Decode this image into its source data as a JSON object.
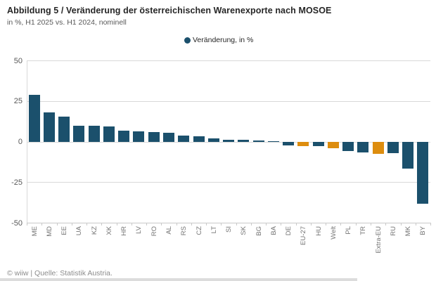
{
  "header": {
    "title": "Abbildung 5 / Veränderung der österreichischen Warenexporte nach MOSOE",
    "subtitle": "in %, H1 2025 vs. H1 2024, nominell"
  },
  "legend": {
    "marker": "filled-circle",
    "label": "Veränderung, in %"
  },
  "footer": {
    "text": "© wiiw | Quelle: Statistik Austria."
  },
  "colors": {
    "bar": "#1b506c",
    "highlight": "#dd8d0e",
    "grid": "#d9d9d9",
    "axis_text": "#595959",
    "xlabel_text": "#737373"
  },
  "chart_data": {
    "type": "bar",
    "title": "Abbildung 5 / Veränderung der österreichischen Warenexporte nach MOSOE",
    "subtitle": "in %, H1 2025 vs. H1 2024, nominell",
    "legend_entries": [
      "Veränderung, in %"
    ],
    "legend_position": "top-center",
    "xlabel": "",
    "ylabel": "",
    "ylim": [
      -50,
      50
    ],
    "yticks": [
      50,
      25,
      0,
      -25,
      -50
    ],
    "grid": "horizontal",
    "categories": [
      "ME",
      "MD",
      "EE",
      "UA",
      "KZ",
      "XK",
      "HR",
      "LV",
      "RO",
      "AL",
      "RS",
      "CZ",
      "LT",
      "SI",
      "SK",
      "BG",
      "BA",
      "DE",
      "EU-27",
      "HU",
      "Welt",
      "PL",
      "TR",
      "Extra-EU",
      "RU",
      "MK",
      "BY"
    ],
    "values": [
      29,
      18,
      15.5,
      10,
      10,
      9.5,
      7,
      6.5,
      6.2,
      5.7,
      4.1,
      3.4,
      2.2,
      1.5,
      1.2,
      0.8,
      0.3,
      -2,
      -2.5,
      -2.5,
      -3.8,
      -5.5,
      -6.5,
      -7.5,
      -6.8,
      -16.5,
      -38
    ],
    "highlighted_categories": [
      "EU-27",
      "Welt",
      "Extra-EU"
    ],
    "highlight_meaning": "aggregate regions shown in orange"
  }
}
